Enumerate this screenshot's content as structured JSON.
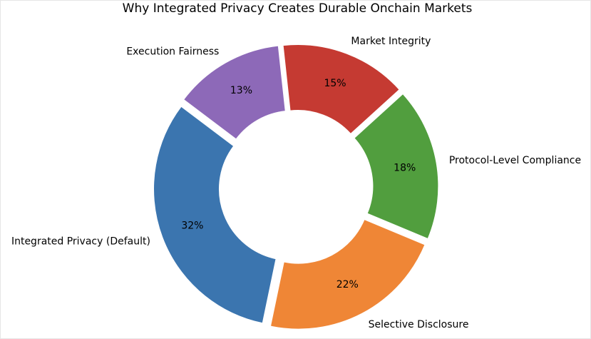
{
  "chart_data": {
    "type": "donut",
    "title": "Why Integrated Privacy Creates Durable Onchain Markets",
    "categories": [
      "Integrated Privacy (Default)",
      "Selective Disclosure",
      "Protocol-Level Compliance",
      "Market Integrity",
      "Execution Fairness"
    ],
    "values": [
      32,
      22,
      18,
      15,
      13
    ],
    "value_labels": [
      "32%",
      "22%",
      "18%",
      "15%",
      "13%"
    ],
    "colors": [
      "#3b75af",
      "#ef8636",
      "#519e3e",
      "#c53a32",
      "#8d69b8"
    ]
  }
}
